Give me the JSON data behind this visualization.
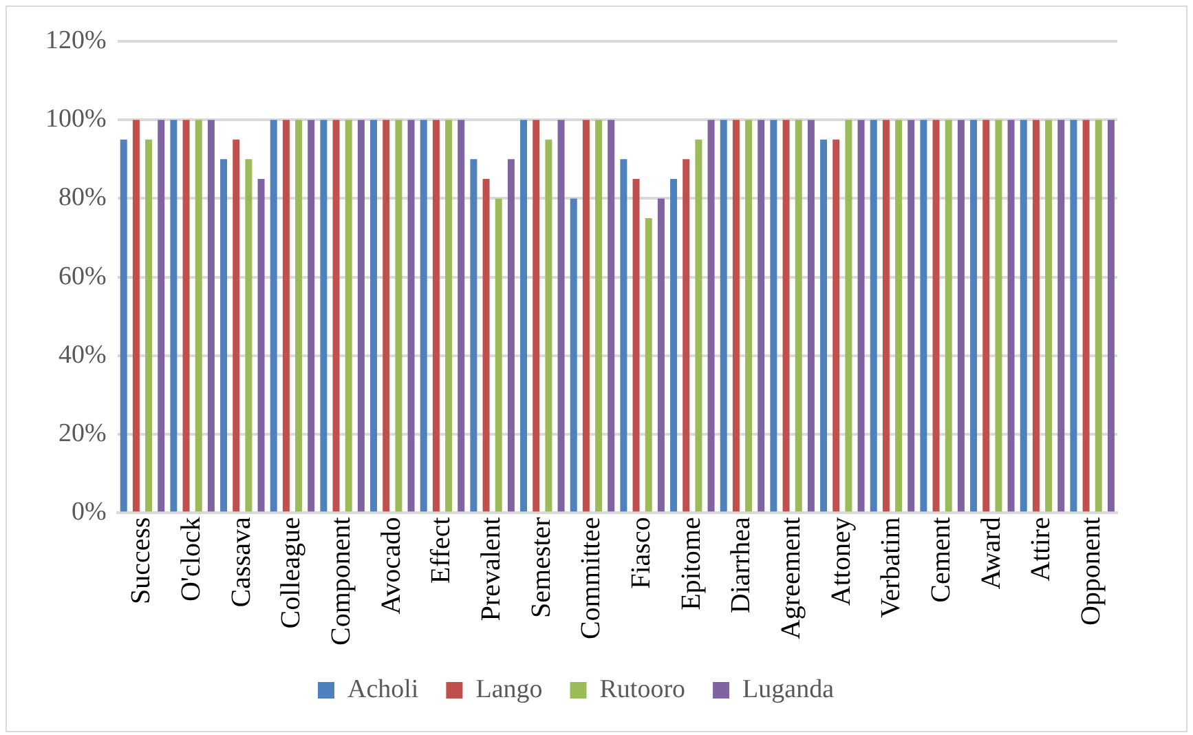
{
  "chart_data": {
    "type": "bar",
    "categories": [
      "Success",
      "O'clock",
      "Cassava",
      "Colleague",
      "Component",
      "Avocado",
      "Effect",
      "Prevalent",
      "Semester",
      "Committee",
      "Fiasco",
      "Epitome",
      "Diarrhea",
      "Agreement",
      "Attoney",
      "Verbatim",
      "Cement",
      "Award",
      "Attire",
      "Opponent"
    ],
    "series": [
      {
        "name": "Acholi",
        "color": "#4f81bd",
        "values": [
          95,
          100,
          90,
          100,
          100,
          100,
          100,
          90,
          100,
          80,
          90,
          85,
          100,
          100,
          95,
          100,
          100,
          100,
          100,
          100
        ]
      },
      {
        "name": "Lango",
        "color": "#c0504d",
        "values": [
          100,
          100,
          95,
          100,
          100,
          100,
          100,
          85,
          100,
          100,
          85,
          90,
          100,
          100,
          95,
          100,
          100,
          100,
          100,
          100
        ]
      },
      {
        "name": "Rutooro",
        "color": "#9bbb59",
        "values": [
          95,
          100,
          90,
          100,
          100,
          100,
          100,
          80,
          95,
          100,
          75,
          95,
          100,
          100,
          100,
          100,
          100,
          100,
          100,
          100
        ]
      },
      {
        "name": "Luganda",
        "color": "#8064a2",
        "values": [
          100,
          100,
          85,
          100,
          100,
          100,
          100,
          90,
          100,
          100,
          80,
          100,
          100,
          100,
          100,
          100,
          100,
          100,
          100,
          100
        ]
      }
    ],
    "ylim": [
      0,
      120
    ],
    "yticks": [
      {
        "value": 0,
        "label": "0%"
      },
      {
        "value": 20,
        "label": "20%"
      },
      {
        "value": 40,
        "label": "40%"
      },
      {
        "value": 60,
        "label": "60%"
      },
      {
        "value": 80,
        "label": "80%"
      },
      {
        "value": 100,
        "label": "100%"
      },
      {
        "value": 120,
        "label": "120%"
      }
    ],
    "grid": "y",
    "legend": "bottom"
  }
}
